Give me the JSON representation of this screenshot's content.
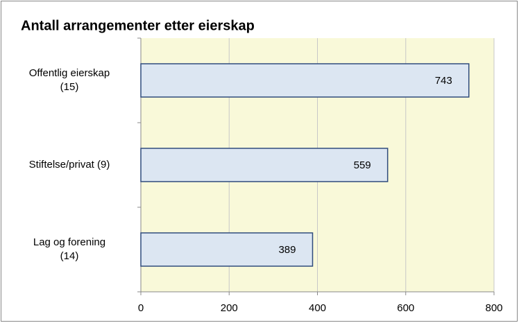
{
  "chart_data": {
    "type": "barh",
    "title": "Antall arrangementer etter eierskap",
    "categories": [
      "Offentlig eierskap\n(15)",
      "Stiftelse/privat (9)",
      "Lag og forening\n(14)"
    ],
    "values": [
      743,
      559,
      389
    ],
    "color": "#dce6f2",
    "edge_color": "#2f4b7c",
    "xlim": [
      0,
      800
    ],
    "xticks": [
      0,
      200,
      400,
      600,
      800
    ],
    "grid": true
  }
}
